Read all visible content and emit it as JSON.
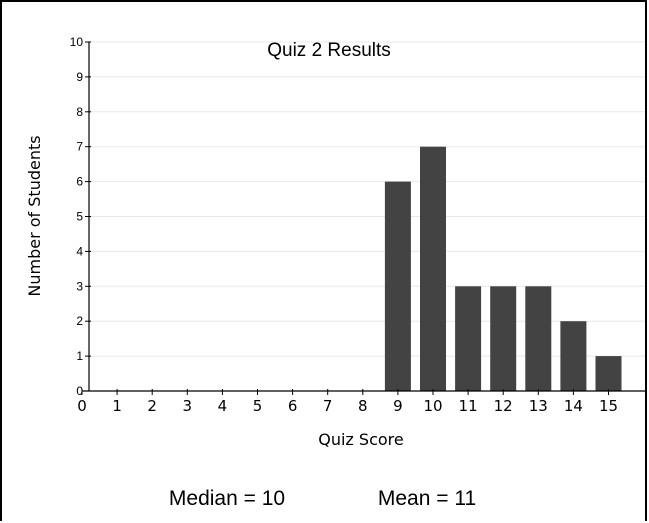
{
  "chart_data": {
    "type": "bar",
    "title": "Quiz 2 Results",
    "xlabel": "Quiz Score",
    "ylabel": "Number of Students",
    "categories": [
      "0",
      "1",
      "2",
      "3",
      "4",
      "5",
      "6",
      "7",
      "8",
      "9",
      "10",
      "11",
      "12",
      "13",
      "14",
      "15"
    ],
    "values": [
      0,
      0,
      0,
      0,
      0,
      0,
      0,
      0,
      0,
      6,
      7,
      3,
      3,
      3,
      2,
      1
    ],
    "ylim": [
      0,
      10
    ],
    "yticks": [
      "0",
      "1",
      "2",
      "3",
      "4",
      "5",
      "6",
      "7",
      "8",
      "9",
      "10"
    ],
    "grid": true,
    "bar_color": "#434343",
    "grid_color": "#e8e8e8"
  },
  "stats": {
    "median": "Median = 10",
    "mean": "Mean = 11"
  }
}
